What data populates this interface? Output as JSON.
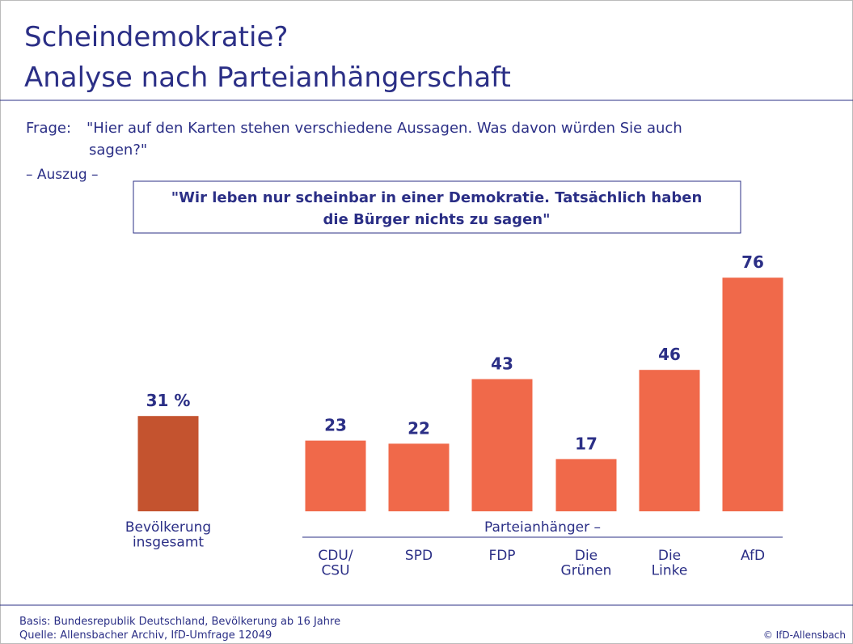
{
  "chart_data": {
    "type": "bar",
    "title": [
      "Scheindemokratie?",
      "Analyse nach Parteianhängerschaft"
    ],
    "question_label": "Frage:",
    "question": [
      "\"Hier auf den Karten stehen verschiedene Aussagen. Was davon würden Sie auch",
      "sagen?\""
    ],
    "excerpt": "– Auszug –",
    "statement": [
      "\"Wir leben nur scheinbar in einer Demokratie. Tatsächlich haben",
      "die Bürger nichts zu sagen\""
    ],
    "categories": [
      "Bevölkerung\ninsgesamt",
      "CDU/\nCSU",
      "SPD",
      "FDP",
      "Die\nGrünen",
      "Die\nLinke",
      "AfD"
    ],
    "values": [
      31,
      23,
      22,
      43,
      17,
      46,
      76
    ],
    "value_labels": [
      "31 %",
      "23",
      "22",
      "43",
      "17",
      "46",
      "76"
    ],
    "colors": [
      "#c4532f",
      "#f0694a",
      "#f0694a",
      "#f0694a",
      "#f0694a",
      "#f0694a",
      "#f0694a"
    ],
    "group_label": "Parteianhänger –",
    "footer": [
      "Basis: Bundesrepublik Deutschland, Bevölkerung ab 16 Jahre",
      "Quelle: Allensbacher Archiv, IfD-Umfrage 12049"
    ],
    "copyright": "© IfD-Allensbach"
  }
}
